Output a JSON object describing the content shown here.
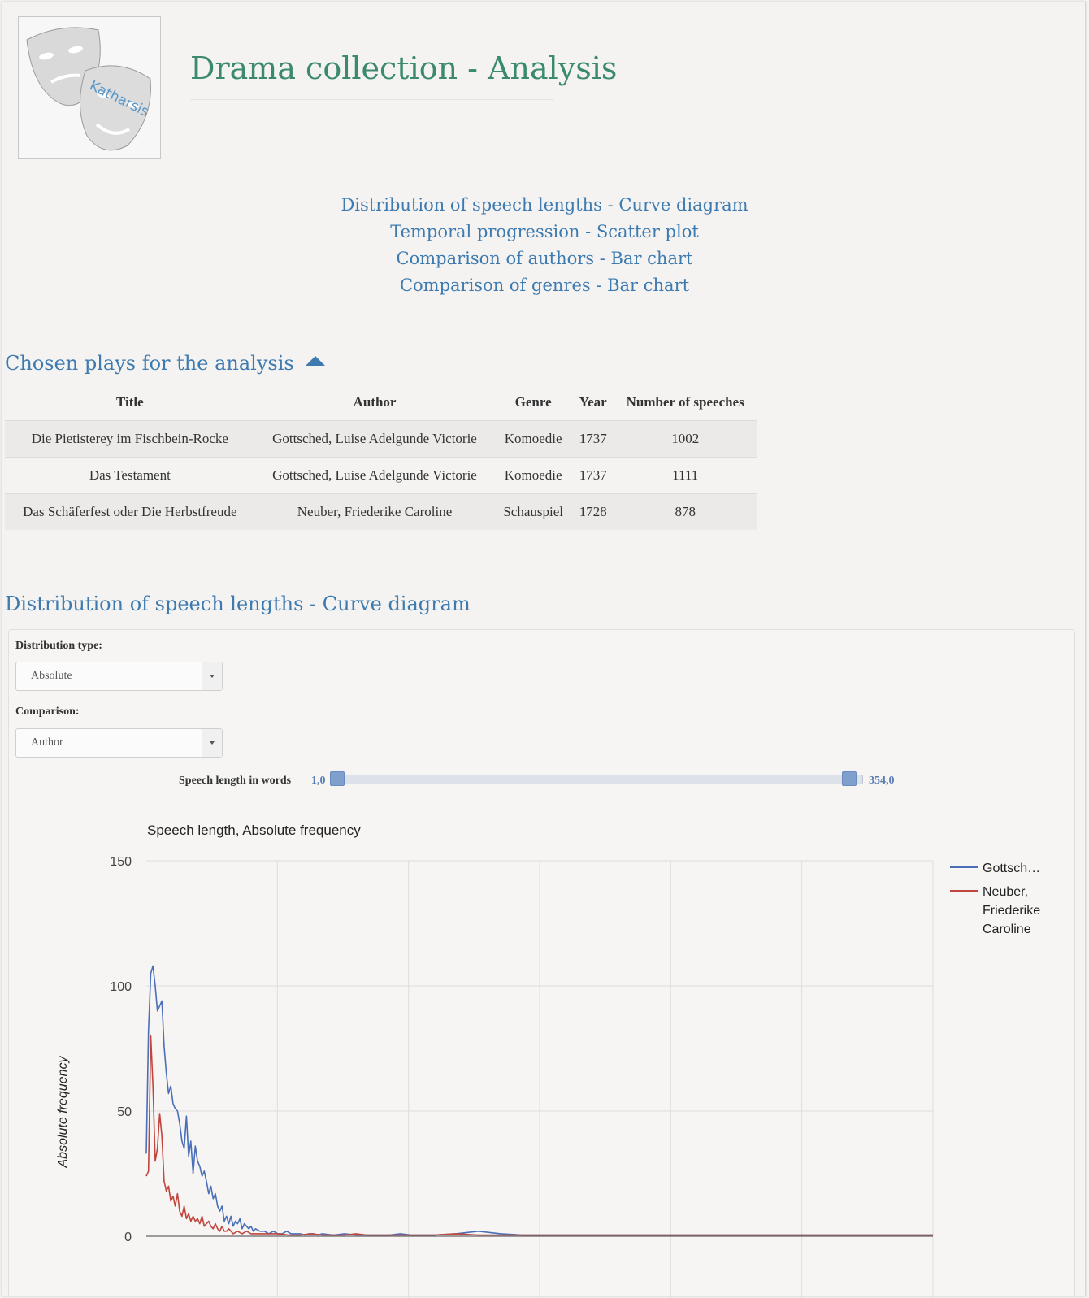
{
  "header": {
    "logo_text": "Katharsis",
    "title": "Drama collection - Analysis"
  },
  "toc": [
    "Distribution of speech lengths - Curve diagram",
    "Temporal progression - Scatter plot",
    "Comparison of authors - Bar chart",
    "Comparison of genres - Bar chart"
  ],
  "plays_section": {
    "title": "Chosen plays for the analysis",
    "columns": [
      "Title",
      "Author",
      "Genre",
      "Year",
      "Number of speeches"
    ],
    "rows": [
      [
        "Die Pietisterey im Fischbein-Rocke",
        "Gottsched, Luise Adelgunde Victorie",
        "Komoedie",
        "1737",
        "1002"
      ],
      [
        "Das Testament",
        "Gottsched, Luise Adelgunde Victorie",
        "Komoedie",
        "1737",
        "1111"
      ],
      [
        "Das Schäferfest oder Die Herbstfreude",
        "Neuber, Friederike Caroline",
        "Schauspiel",
        "1728",
        "878"
      ]
    ]
  },
  "distribution_section": {
    "title": "Distribution of speech lengths - Curve diagram",
    "distribution_type": {
      "label": "Distribution type:",
      "value": "Absolute"
    },
    "comparison": {
      "label": "Comparison:",
      "value": "Author"
    },
    "slider": {
      "label": "Speech length in words",
      "min_label": "1,0",
      "max_label": "354,0",
      "min": 1,
      "max": 354,
      "low": 1,
      "high": 354
    }
  },
  "colors": {
    "accent": "#3d7ab0",
    "title": "#3a8a6b",
    "series1": "#4a6fb8",
    "series2": "#c0453d"
  },
  "chart_data": {
    "type": "line",
    "title": "Speech length, Absolute frequency",
    "xlabel": "",
    "ylabel": "Absolute frequency",
    "ylim": [
      0,
      150
    ],
    "yticks": [
      0,
      50,
      100,
      150
    ],
    "xlim": [
      1,
      354
    ],
    "grid": true,
    "legend_position": "right",
    "series": [
      {
        "name": "Gottsch…",
        "color": "#4a6fb8",
        "x": [
          1,
          2,
          3,
          4,
          5,
          6,
          7,
          8,
          9,
          10,
          11,
          12,
          13,
          14,
          15,
          16,
          17,
          18,
          19,
          20,
          21,
          22,
          23,
          24,
          25,
          26,
          27,
          28,
          29,
          30,
          31,
          32,
          33,
          34,
          35,
          36,
          37,
          38,
          39,
          40,
          41,
          42,
          43,
          44,
          45,
          46,
          47,
          48,
          49,
          50,
          52,
          54,
          56,
          58,
          60,
          62,
          64,
          66,
          68,
          70,
          72,
          74,
          76,
          78,
          80,
          85,
          90,
          95,
          100,
          105,
          110,
          115,
          120,
          125,
          130,
          140,
          150,
          160,
          170,
          180,
          190,
          200,
          210,
          220,
          230,
          240,
          250,
          260,
          280,
          300,
          320,
          354
        ],
        "values": [
          33,
          82,
          105,
          108,
          100,
          90,
          92,
          94,
          76,
          65,
          57,
          60,
          53,
          51,
          50,
          45,
          38,
          35,
          48,
          32,
          38,
          25,
          36,
          30,
          28,
          24,
          26,
          22,
          17,
          20,
          15,
          17,
          12,
          10,
          12,
          6,
          8,
          5,
          8,
          4,
          6,
          5,
          7,
          3,
          5,
          4,
          3,
          4,
          2,
          3,
          2,
          2,
          1,
          2,
          1,
          1,
          2,
          1,
          1,
          1,
          0.5,
          1,
          1,
          0.5,
          1,
          0.5,
          1,
          0.5,
          0.5,
          0.5,
          0.5,
          1,
          0.5,
          0.5,
          0.5,
          1,
          2,
          1,
          0.5,
          0.5,
          0.5,
          0.5,
          0.5,
          0.5,
          0.5,
          0.5,
          0.5,
          0.5,
          0.5,
          0.5,
          0.5,
          0.5
        ]
      },
      {
        "name": "Neuber, Friederike Caroline",
        "color": "#c0453d",
        "x": [
          1,
          2,
          3,
          4,
          5,
          6,
          7,
          8,
          9,
          10,
          11,
          12,
          13,
          14,
          15,
          16,
          17,
          18,
          19,
          20,
          21,
          22,
          23,
          24,
          25,
          26,
          27,
          28,
          29,
          30,
          31,
          32,
          33,
          34,
          35,
          36,
          37,
          38,
          39,
          40,
          42,
          44,
          46,
          48,
          50,
          55,
          60,
          65,
          70,
          75,
          80,
          85,
          90,
          95,
          100,
          105,
          110,
          115,
          120,
          125,
          130,
          140,
          150,
          160,
          170,
          180,
          190,
          200,
          220,
          240,
          260,
          280,
          300,
          320,
          354
        ],
        "values": [
          24,
          26,
          80,
          60,
          30,
          35,
          49,
          40,
          22,
          18,
          20,
          14,
          16,
          12,
          17,
          10,
          8,
          12,
          7,
          9,
          6,
          8,
          6,
          7,
          5,
          8,
          4,
          5,
          6,
          4,
          3,
          5,
          3,
          2,
          4,
          2,
          2,
          3,
          2,
          1,
          2,
          1,
          2,
          1,
          1,
          1,
          1,
          0.5,
          0.5,
          1,
          0.5,
          0.5,
          0.5,
          1,
          0.5,
          0.5,
          0.5,
          0.5,
          0.5,
          0.5,
          0.5,
          1,
          0.5,
          0.5,
          0.5,
          0.5,
          0.5,
          0.5,
          0.5,
          0.5,
          0.5,
          0.5,
          0.5,
          0.5,
          0.5
        ]
      }
    ]
  }
}
